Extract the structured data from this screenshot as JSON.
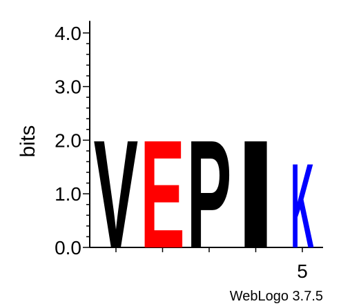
{
  "chart_data": {
    "type": "sequence-logo",
    "ylabel": "bits",
    "ylim": [
      0,
      4.2
    ],
    "y_ticks": [
      "0.0",
      "1.0",
      "2.0",
      "3.0",
      "4.0"
    ],
    "x_tick_labels": [
      {
        "position": 5,
        "label": "5"
      }
    ],
    "positions": [
      {
        "index": 1,
        "stack": [
          {
            "letter": "V",
            "bits": 2.07,
            "color": "#000000"
          }
        ]
      },
      {
        "index": 2,
        "stack": [
          {
            "letter": "E",
            "bits": 2.07,
            "color": "#ff0000"
          }
        ]
      },
      {
        "index": 3,
        "stack": [
          {
            "letter": "P",
            "bits": 2.07,
            "color": "#000000"
          }
        ]
      },
      {
        "index": 4,
        "stack": [
          {
            "letter": "I",
            "bits": 2.07,
            "color": "#000000"
          }
        ]
      },
      {
        "index": 5,
        "stack": [
          {
            "letter": "K",
            "bits": 1.62,
            "color": "#0000ff"
          }
        ]
      }
    ]
  },
  "footer": "WebLogo 3.7.5"
}
